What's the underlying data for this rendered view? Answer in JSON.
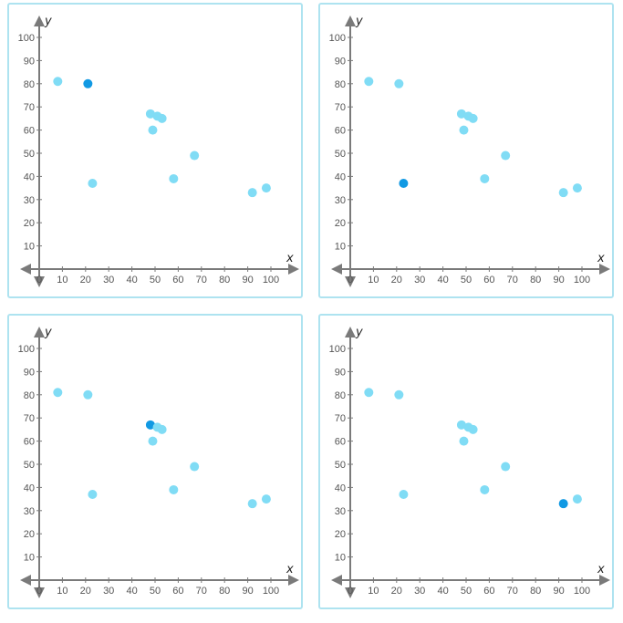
{
  "chart_data": {
    "type": "scatter",
    "xlabel": "x",
    "ylabel": "y",
    "xlim": [
      0,
      100
    ],
    "ylim": [
      0,
      100
    ],
    "x_ticks": [
      0,
      10,
      20,
      30,
      40,
      50,
      60,
      70,
      80,
      90,
      100
    ],
    "y_ticks": [
      10,
      20,
      30,
      40,
      50,
      60,
      70,
      80,
      90,
      100
    ],
    "grid": false,
    "point_color": "#80dcf5",
    "highlight_color": "#1199e3",
    "points": [
      {
        "x": 8,
        "y": 81
      },
      {
        "x": 21,
        "y": 80
      },
      {
        "x": 23,
        "y": 37
      },
      {
        "x": 48,
        "y": 67
      },
      {
        "x": 49,
        "y": 60
      },
      {
        "x": 51,
        "y": 66
      },
      {
        "x": 53,
        "y": 65
      },
      {
        "x": 58,
        "y": 39
      },
      {
        "x": 67,
        "y": 49
      },
      {
        "x": 92,
        "y": 33
      },
      {
        "x": 98,
        "y": 35
      }
    ],
    "panels": [
      {
        "highlight_index": 1
      },
      {
        "highlight_index": 2
      },
      {
        "highlight_index": 3
      },
      {
        "highlight_index": 9
      }
    ]
  }
}
